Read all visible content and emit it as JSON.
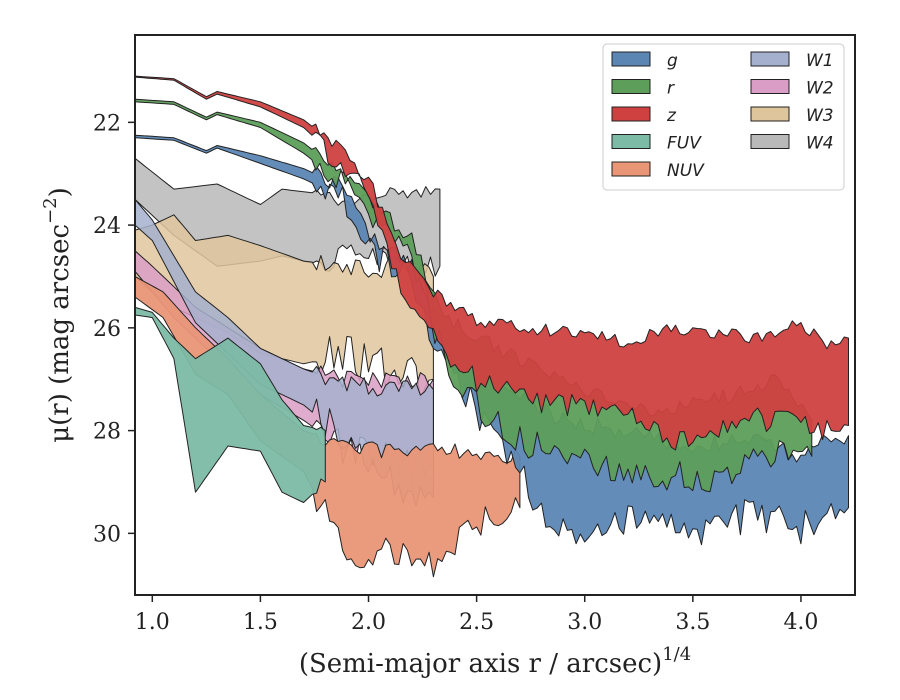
{
  "chart_data": {
    "type": "area",
    "title": "",
    "xlabel": "(Semi-major axis r / arcsec)",
    "xlabel_superscript": "1/4",
    "ylabel": "μ(r) (mag arcsec",
    "ylabel_superscript": "−2",
    "ylabel_suffix": ")",
    "xlim": [
      0.92,
      4.25
    ],
    "ylim": [
      31.2,
      20.3
    ],
    "y_inverted": true,
    "xticks": [
      1.0,
      1.5,
      2.0,
      2.5,
      3.0,
      3.5,
      4.0
    ],
    "xtick_labels": [
      "1.0",
      "1.5",
      "2.0",
      "2.5",
      "3.0",
      "3.5",
      "4.0"
    ],
    "yticks": [
      22,
      24,
      26,
      28,
      30
    ],
    "ytick_labels": [
      "22",
      "24",
      "26",
      "28",
      "30"
    ],
    "legend": {
      "placement": "top-right",
      "columns": 2
    },
    "series": [
      {
        "name": "g",
        "color": "#5b86b4",
        "upper": [
          [
            0.92,
            22.25
          ],
          [
            1.1,
            22.3
          ],
          [
            1.25,
            22.55
          ],
          [
            1.3,
            22.45
          ],
          [
            1.5,
            22.65
          ],
          [
            1.7,
            22.9
          ],
          [
            1.9,
            23.3
          ],
          [
            2.05,
            24.5
          ],
          [
            2.2,
            24.7
          ],
          [
            2.3,
            25.8
          ],
          [
            2.45,
            26.6
          ],
          [
            2.6,
            27.0
          ],
          [
            2.8,
            27.6
          ],
          [
            3.0,
            27.9
          ],
          [
            3.2,
            28.0
          ],
          [
            3.5,
            28.3
          ],
          [
            3.8,
            28.2
          ],
          [
            4.0,
            28.5
          ],
          [
            4.1,
            28.2
          ],
          [
            4.2,
            28.3
          ],
          [
            4.22,
            28.1
          ]
        ],
        "lower": [
          [
            0.92,
            22.3
          ],
          [
            1.1,
            22.35
          ],
          [
            1.25,
            22.6
          ],
          [
            1.3,
            22.5
          ],
          [
            1.5,
            22.8
          ],
          [
            1.7,
            23.1
          ],
          [
            1.9,
            23.5
          ],
          [
            2.05,
            24.7
          ],
          [
            2.2,
            24.85
          ],
          [
            2.3,
            26.3
          ],
          [
            2.45,
            27.3
          ],
          [
            2.6,
            28.2
          ],
          [
            2.8,
            29.5
          ],
          [
            3.0,
            30.1
          ],
          [
            3.2,
            29.8
          ],
          [
            3.5,
            30.0
          ],
          [
            3.8,
            29.6
          ],
          [
            4.0,
            29.9
          ],
          [
            4.1,
            29.7
          ],
          [
            4.2,
            29.4
          ],
          [
            4.22,
            29.5
          ]
        ]
      },
      {
        "name": "r",
        "color": "#5d9e5b",
        "upper": [
          [
            0.92,
            21.55
          ],
          [
            1.1,
            21.6
          ],
          [
            1.25,
            21.9
          ],
          [
            1.3,
            21.8
          ],
          [
            1.5,
            22.0
          ],
          [
            1.7,
            22.4
          ],
          [
            1.85,
            22.9
          ],
          [
            2.0,
            23.5
          ],
          [
            2.2,
            24.3
          ],
          [
            2.35,
            25.8
          ],
          [
            2.5,
            26.2
          ],
          [
            2.7,
            26.6
          ],
          [
            3.0,
            27.2
          ],
          [
            3.3,
            27.6
          ],
          [
            3.6,
            27.4
          ],
          [
            3.8,
            27.2
          ],
          [
            3.9,
            27.0
          ],
          [
            4.05,
            27.8
          ]
        ],
        "lower": [
          [
            0.92,
            21.6
          ],
          [
            1.1,
            21.65
          ],
          [
            1.25,
            21.95
          ],
          [
            1.3,
            21.85
          ],
          [
            1.5,
            22.1
          ],
          [
            1.7,
            22.6
          ],
          [
            1.85,
            23.1
          ],
          [
            2.0,
            23.7
          ],
          [
            2.2,
            24.6
          ],
          [
            2.35,
            26.6
          ],
          [
            2.5,
            27.5
          ],
          [
            2.7,
            28.2
          ],
          [
            3.0,
            28.6
          ],
          [
            3.3,
            28.9
          ],
          [
            3.6,
            28.9
          ],
          [
            3.8,
            28.5
          ],
          [
            3.9,
            28.4
          ],
          [
            4.05,
            28.5
          ]
        ]
      },
      {
        "name": "z",
        "color": "#cf4141",
        "upper": [
          [
            0.92,
            21.1
          ],
          [
            1.1,
            21.15
          ],
          [
            1.25,
            21.5
          ],
          [
            1.3,
            21.4
          ],
          [
            1.5,
            21.6
          ],
          [
            1.7,
            21.95
          ],
          [
            1.85,
            22.45
          ],
          [
            2.0,
            23.1
          ],
          [
            2.15,
            24.6
          ],
          [
            2.3,
            25.3
          ],
          [
            2.5,
            25.9
          ],
          [
            2.7,
            26.0
          ],
          [
            3.0,
            26.1
          ],
          [
            3.2,
            26.3
          ],
          [
            3.4,
            26.0
          ],
          [
            3.6,
            26.1
          ],
          [
            3.8,
            26.2
          ],
          [
            4.0,
            25.9
          ],
          [
            4.1,
            26.3
          ],
          [
            4.22,
            26.2
          ]
        ],
        "lower": [
          [
            0.92,
            21.12
          ],
          [
            1.1,
            21.18
          ],
          [
            1.25,
            21.55
          ],
          [
            1.3,
            21.45
          ],
          [
            1.5,
            21.7
          ],
          [
            1.7,
            22.1
          ],
          [
            1.85,
            22.7
          ],
          [
            2.0,
            23.35
          ],
          [
            2.15,
            25.2
          ],
          [
            2.3,
            26.2
          ],
          [
            2.5,
            27.0
          ],
          [
            2.7,
            27.3
          ],
          [
            3.0,
            27.6
          ],
          [
            3.2,
            27.7
          ],
          [
            3.4,
            28.3
          ],
          [
            3.6,
            28.0
          ],
          [
            3.8,
            27.8
          ],
          [
            4.0,
            27.9
          ],
          [
            4.1,
            28.0
          ],
          [
            4.22,
            27.9
          ]
        ]
      },
      {
        "name": "FUV",
        "color": "#7cbba6",
        "upper": [
          [
            0.92,
            25.6
          ],
          [
            1.0,
            25.7
          ],
          [
            1.1,
            26.2
          ],
          [
            1.2,
            26.6
          ],
          [
            1.35,
            26.2
          ],
          [
            1.5,
            26.7
          ],
          [
            1.6,
            27.4
          ],
          [
            1.7,
            27.9
          ],
          [
            1.8,
            28.0
          ]
        ],
        "lower": [
          [
            0.92,
            25.75
          ],
          [
            1.0,
            25.8
          ],
          [
            1.1,
            26.6
          ],
          [
            1.2,
            29.2
          ],
          [
            1.35,
            28.3
          ],
          [
            1.5,
            28.4
          ],
          [
            1.6,
            29.2
          ],
          [
            1.7,
            29.4
          ],
          [
            1.8,
            29.0
          ]
        ]
      },
      {
        "name": "NUV",
        "color": "#e99677",
        "upper": [
          [
            0.92,
            25.0
          ],
          [
            1.05,
            25.3
          ],
          [
            1.2,
            26.0
          ],
          [
            1.35,
            26.6
          ],
          [
            1.5,
            27.3
          ],
          [
            1.7,
            28.0
          ],
          [
            1.9,
            28.3
          ],
          [
            2.1,
            28.4
          ],
          [
            2.3,
            28.3
          ],
          [
            2.5,
            28.5
          ],
          [
            2.7,
            28.5
          ]
        ],
        "lower": [
          [
            0.92,
            25.4
          ],
          [
            1.05,
            25.8
          ],
          [
            1.2,
            26.9
          ],
          [
            1.35,
            27.3
          ],
          [
            1.5,
            28.2
          ],
          [
            1.7,
            28.8
          ],
          [
            1.9,
            30.4
          ],
          [
            2.1,
            30.3
          ],
          [
            2.3,
            30.6
          ],
          [
            2.5,
            29.8
          ],
          [
            2.7,
            29.5
          ]
        ]
      },
      {
        "name": "W1",
        "color": "#a4b0cd",
        "upper": [
          [
            0.92,
            23.5
          ],
          [
            1.0,
            23.9
          ],
          [
            1.1,
            24.6
          ],
          [
            1.2,
            25.3
          ],
          [
            1.35,
            25.8
          ],
          [
            1.5,
            26.4
          ],
          [
            1.7,
            26.8
          ],
          [
            1.9,
            27.1
          ],
          [
            2.1,
            27.2
          ],
          [
            2.3,
            27.2
          ]
        ],
        "lower": [
          [
            0.92,
            24.0
          ],
          [
            1.0,
            24.3
          ],
          [
            1.1,
            25.1
          ],
          [
            1.2,
            25.9
          ],
          [
            1.35,
            26.5
          ],
          [
            1.5,
            27.1
          ],
          [
            1.7,
            27.5
          ],
          [
            1.9,
            28.2
          ],
          [
            2.1,
            29.0
          ],
          [
            2.3,
            29.3
          ]
        ]
      },
      {
        "name": "W2",
        "color": "#da9ec6",
        "upper": [
          [
            0.92,
            24.5
          ],
          [
            1.0,
            24.8
          ],
          [
            1.1,
            25.2
          ],
          [
            1.2,
            25.6
          ],
          [
            1.35,
            26.0
          ],
          [
            1.5,
            26.4
          ],
          [
            1.7,
            26.8
          ],
          [
            1.9,
            27.0
          ],
          [
            2.1,
            27.0
          ],
          [
            2.3,
            27.0
          ]
        ],
        "lower": [
          [
            0.92,
            24.9
          ],
          [
            1.0,
            25.3
          ],
          [
            1.1,
            25.8
          ],
          [
            1.2,
            26.2
          ],
          [
            1.35,
            26.8
          ],
          [
            1.5,
            27.3
          ],
          [
            1.7,
            27.8
          ],
          [
            1.9,
            28.4
          ],
          [
            2.1,
            28.6
          ],
          [
            2.3,
            28.8
          ]
        ]
      },
      {
        "name": "W3",
        "color": "#dfc59c",
        "upper": [
          [
            0.92,
            24.1
          ],
          [
            1.0,
            24.0
          ],
          [
            1.1,
            23.8
          ],
          [
            1.2,
            24.3
          ],
          [
            1.35,
            24.2
          ],
          [
            1.5,
            24.4
          ],
          [
            1.7,
            24.7
          ],
          [
            1.9,
            24.8
          ],
          [
            2.1,
            24.8
          ],
          [
            2.3,
            25.0
          ]
        ],
        "lower": [
          [
            0.92,
            25.0
          ],
          [
            1.0,
            25.3
          ],
          [
            1.1,
            25.6
          ],
          [
            1.2,
            25.8
          ],
          [
            1.35,
            26.1
          ],
          [
            1.5,
            26.5
          ],
          [
            1.7,
            26.7
          ],
          [
            1.9,
            26.5
          ],
          [
            2.1,
            26.9
          ],
          [
            2.3,
            27.0
          ]
        ]
      },
      {
        "name": "W4",
        "color": "#b9b9b9",
        "upper": [
          [
            0.92,
            22.7
          ],
          [
            1.1,
            23.3
          ],
          [
            1.3,
            23.2
          ],
          [
            1.5,
            23.6
          ],
          [
            1.6,
            23.3
          ],
          [
            1.8,
            23.4
          ],
          [
            1.9,
            23.6
          ],
          [
            2.1,
            23.3
          ],
          [
            2.2,
            23.4
          ],
          [
            2.33,
            23.3
          ]
        ],
        "lower": [
          [
            0.92,
            23.5
          ],
          [
            1.1,
            24.2
          ],
          [
            1.3,
            24.8
          ],
          [
            1.5,
            24.7
          ],
          [
            1.6,
            24.6
          ],
          [
            1.8,
            24.8
          ],
          [
            1.9,
            24.4
          ],
          [
            2.1,
            24.7
          ],
          [
            2.2,
            24.8
          ],
          [
            2.33,
            24.8
          ]
        ]
      }
    ]
  }
}
